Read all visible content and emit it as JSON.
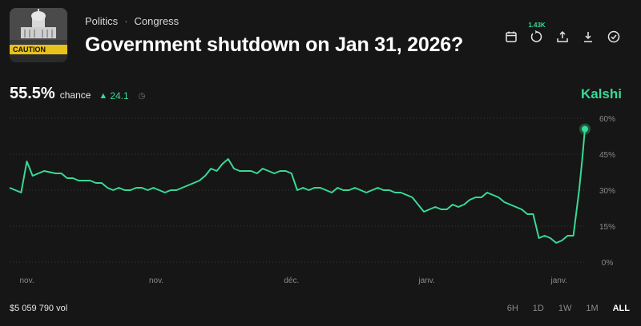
{
  "header": {
    "breadcrumb": [
      "Politics",
      "Congress"
    ],
    "breadcrumb_sep": "·",
    "title": "Government shutdown on Jan 31, 2026?",
    "thumbnail_icon": "capitol-caution-image",
    "thumbnail_text": "CAUTION"
  },
  "toolbar": {
    "comments_count": "1.43K",
    "icons": [
      "calendar-icon",
      "comments-icon",
      "share-icon",
      "download-icon",
      "check-circle-icon"
    ]
  },
  "summary": {
    "chance_value": "55.5%",
    "chance_label": "chance",
    "delta_value": "24.1",
    "delta_direction": "up",
    "brand": "Kalshi"
  },
  "colors": {
    "accent": "#38d996",
    "background": "#161616",
    "grid": "#3a3a3a",
    "muted": "#8a8a8a"
  },
  "chart_data": {
    "type": "line",
    "ylim": [
      0,
      60
    ],
    "y_ticks": [
      0,
      15,
      30,
      45,
      60
    ],
    "y_tick_labels": [
      "0%",
      "15%",
      "30%",
      "45%",
      "60%"
    ],
    "x_range": [
      0,
      100
    ],
    "x_tick_labels": [
      {
        "label": "nov.",
        "x": 3
      },
      {
        "label": "nov.",
        "x": 25.5
      },
      {
        "label": "déc.",
        "x": 49
      },
      {
        "label": "janv.",
        "x": 72.5
      },
      {
        "label": "janv.",
        "x": 95.5
      }
    ],
    "grid": true,
    "series": [
      {
        "points": [
          [
            0,
            31
          ],
          [
            1,
            30
          ],
          [
            2,
            29
          ],
          [
            3,
            42
          ],
          [
            4,
            36
          ],
          [
            5,
            37
          ],
          [
            6,
            38
          ],
          [
            7,
            37.5
          ],
          [
            8,
            37
          ],
          [
            9,
            37
          ],
          [
            10,
            35
          ],
          [
            11,
            35
          ],
          [
            12,
            34
          ],
          [
            13,
            34
          ],
          [
            14,
            34
          ],
          [
            15,
            33
          ],
          [
            16,
            33
          ],
          [
            17,
            31
          ],
          [
            18,
            30
          ],
          [
            19,
            31
          ],
          [
            20,
            30
          ],
          [
            21,
            30
          ],
          [
            22,
            31
          ],
          [
            23,
            31
          ],
          [
            24,
            30
          ],
          [
            25,
            31
          ],
          [
            26,
            30
          ],
          [
            27,
            29
          ],
          [
            28,
            30
          ],
          [
            29,
            30
          ],
          [
            30,
            31
          ],
          [
            31,
            32
          ],
          [
            32,
            33
          ],
          [
            33,
            34
          ],
          [
            34,
            36
          ],
          [
            35,
            39
          ],
          [
            36,
            38
          ],
          [
            37,
            41
          ],
          [
            38,
            43
          ],
          [
            39,
            39
          ],
          [
            40,
            38
          ],
          [
            41,
            38
          ],
          [
            42,
            38
          ],
          [
            43,
            37
          ],
          [
            44,
            39
          ],
          [
            45,
            38
          ],
          [
            46,
            37
          ],
          [
            47,
            38
          ],
          [
            48,
            38
          ],
          [
            49,
            37
          ],
          [
            50,
            30
          ],
          [
            51,
            31
          ],
          [
            52,
            30
          ],
          [
            53,
            31
          ],
          [
            54,
            31
          ],
          [
            55,
            30
          ],
          [
            56,
            29
          ],
          [
            57,
            31
          ],
          [
            58,
            30
          ],
          [
            59,
            30
          ],
          [
            60,
            31
          ],
          [
            61,
            30
          ],
          [
            62,
            29
          ],
          [
            63,
            30
          ],
          [
            64,
            31
          ],
          [
            65,
            30
          ],
          [
            66,
            30
          ],
          [
            67,
            29
          ],
          [
            68,
            29
          ],
          [
            69,
            28
          ],
          [
            70,
            27
          ],
          [
            71,
            24
          ],
          [
            72,
            21
          ],
          [
            73,
            22
          ],
          [
            74,
            23
          ],
          [
            75,
            22
          ],
          [
            76,
            22
          ],
          [
            77,
            24
          ],
          [
            78,
            23
          ],
          [
            79,
            24
          ],
          [
            80,
            26
          ],
          [
            81,
            27
          ],
          [
            82,
            27
          ],
          [
            83,
            29
          ],
          [
            84,
            28
          ],
          [
            85,
            27
          ],
          [
            86,
            25
          ],
          [
            87,
            24
          ],
          [
            88,
            23
          ],
          [
            89,
            22
          ],
          [
            90,
            20
          ],
          [
            91,
            20
          ],
          [
            92,
            10
          ],
          [
            93,
            11
          ],
          [
            94,
            10
          ],
          [
            95,
            8
          ],
          [
            96,
            9
          ],
          [
            97,
            11
          ],
          [
            98,
            11
          ],
          [
            99,
            30
          ],
          [
            99.5,
            42
          ],
          [
            100,
            55.5
          ]
        ]
      }
    ]
  },
  "footer": {
    "volume": "$5 059 790 vol",
    "ranges": [
      "6H",
      "1D",
      "1W",
      "1M",
      "ALL"
    ],
    "active_range": "ALL"
  }
}
